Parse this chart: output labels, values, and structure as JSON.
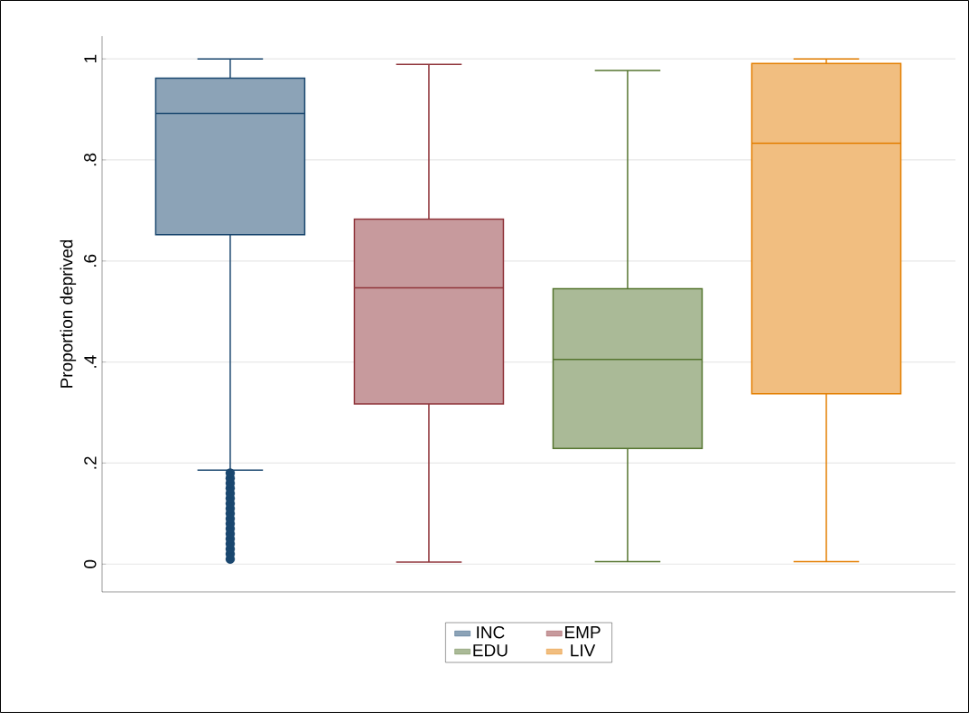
{
  "chart_data": {
    "type": "box",
    "ylabel": "Proportion deprived",
    "categories": [
      null,
      null,
      null,
      null
    ],
    "ylim": [
      -0.055,
      1.045
    ],
    "yticks": [
      {
        "value": 0,
        "label": "0"
      },
      {
        "value": 0.2,
        "label": ".2"
      },
      {
        "value": 0.4,
        "label": ".4"
      },
      {
        "value": 0.6,
        "label": ".6"
      },
      {
        "value": 0.8,
        "label": ".8"
      },
      {
        "value": 1,
        "label": "1"
      }
    ],
    "grid": "y",
    "legend": "bottom",
    "tick_labels": "y",
    "series": [
      {
        "name": "INC",
        "color": "#1a476f",
        "boxes": [
          {
            "low": 0.186,
            "q1": 0.652,
            "median": 0.892,
            "q3": 0.962,
            "high": 1.0,
            "outliers": [
              0.01,
              0.02,
              0.03,
              0.04,
              0.05,
              0.06,
              0.07,
              0.08,
              0.09,
              0.1,
              0.11,
              0.12,
              0.13,
              0.14,
              0.15,
              0.16,
              0.17,
              0.18
            ]
          },
          null,
          null,
          null
        ]
      },
      {
        "name": "EMP",
        "color": "#90353b",
        "boxes": [
          null,
          {
            "low": 0.004,
            "q1": 0.317,
            "median": 0.547,
            "q3": 0.683,
            "high": 0.989
          },
          null,
          null
        ]
      },
      {
        "name": "EDU",
        "color": "#55752f",
        "boxes": [
          null,
          null,
          {
            "low": 0.005,
            "q1": 0.229,
            "median": 0.405,
            "q3": 0.545,
            "high": 0.977
          },
          null
        ]
      },
      {
        "name": "LIV",
        "color": "#e37e00",
        "boxes": [
          null,
          null,
          null,
          {
            "low": 0.005,
            "q1": 0.337,
            "median": 0.833,
            "q3": 0.991,
            "high": 1.0
          }
        ]
      }
    ]
  }
}
